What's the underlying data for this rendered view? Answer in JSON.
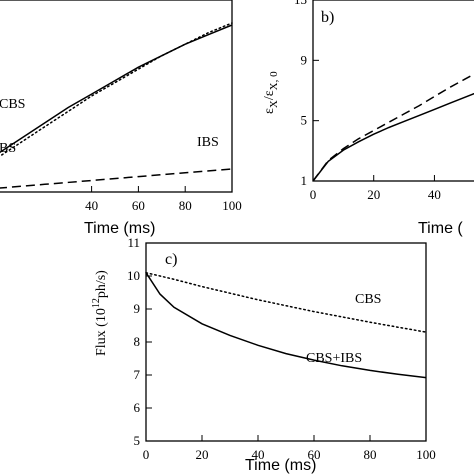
{
  "chart_data": [
    {
      "panel_label": "",
      "type": "line",
      "xlabel": "Time (ms)",
      "ylabel": "",
      "xlim": [
        0,
        100
      ],
      "ylim": [
        0,
        1
      ],
      "xticks": [
        40,
        60,
        80,
        100
      ],
      "yticks": [],
      "series": [
        {
          "name": "CBS",
          "style": "solid",
          "x": [
            0,
            10,
            20,
            30,
            40,
            50,
            60,
            70,
            80,
            90,
            100
          ],
          "y": [
            0.2,
            0.28,
            0.36,
            0.44,
            0.51,
            0.58,
            0.65,
            0.71,
            0.77,
            0.82,
            0.87
          ]
        },
        {
          "name": "",
          "style": "dotted",
          "x": [
            0,
            10,
            20,
            30,
            40,
            50,
            60,
            70,
            80,
            90,
            100
          ],
          "y": [
            0.18,
            0.26,
            0.34,
            0.42,
            0.5,
            0.57,
            0.64,
            0.71,
            0.77,
            0.83,
            0.88
          ]
        },
        {
          "name": "IBS",
          "style": "dashed",
          "x": [
            0,
            20,
            40,
            60,
            80,
            100
          ],
          "y": [
            0.02,
            0.04,
            0.06,
            0.08,
            0.1,
            0.12
          ]
        }
      ],
      "annotations": [
        "CBS",
        "BS",
        "IBS"
      ]
    },
    {
      "panel_label": "b)",
      "type": "line",
      "xlabel": "Time (",
      "ylabel": "εX/εX,0",
      "ylabel_parts": {
        "base": "ε",
        "sub1": "X",
        "slash": "/",
        "sub2": "X, 0"
      },
      "xlim": [
        0,
        56
      ],
      "ylim": [
        1,
        13
      ],
      "xticks": [
        0,
        20,
        40
      ],
      "yticks": [
        1,
        5,
        9,
        13
      ],
      "series": [
        {
          "name": "",
          "style": "solid",
          "x": [
            0,
            5,
            10,
            15,
            20,
            25,
            30,
            35,
            40,
            45,
            50,
            55
          ],
          "y": [
            1,
            2.3,
            3.05,
            3.6,
            4.1,
            4.55,
            4.95,
            5.35,
            5.75,
            6.15,
            6.55,
            6.95
          ]
        },
        {
          "name": "",
          "style": "dashed",
          "x": [
            0,
            5,
            10,
            15,
            20,
            25,
            30,
            35,
            40,
            45,
            50,
            55
          ],
          "y": [
            1,
            2.35,
            3.15,
            3.8,
            4.35,
            4.9,
            5.45,
            6,
            6.6,
            7.2,
            7.75,
            8.3
          ]
        }
      ]
    },
    {
      "panel_label": "c)",
      "type": "line",
      "xlabel": "Time (ms)",
      "ylabel_prefix": "Flux (10",
      "ylabel_sup": "12",
      "ylabel_suffix": "ph/s)",
      "xlim": [
        0,
        100
      ],
      "ylim": [
        5,
        11
      ],
      "xticks": [
        0,
        20,
        40,
        60,
        80,
        100
      ],
      "yticks": [
        5,
        6,
        7,
        8,
        9,
        10,
        11
      ],
      "series": [
        {
          "name": "CBS",
          "style": "dotted",
          "x": [
            0,
            10,
            20,
            30,
            40,
            50,
            60,
            70,
            80,
            90,
            100
          ],
          "y": [
            10.1,
            9.9,
            9.68,
            9.48,
            9.28,
            9.1,
            8.92,
            8.76,
            8.6,
            8.45,
            8.3
          ]
        },
        {
          "name": "CBS+IBS",
          "style": "solid",
          "x": [
            0,
            5,
            10,
            20,
            30,
            40,
            50,
            60,
            70,
            80,
            90,
            100
          ],
          "y": [
            10.1,
            9.45,
            9.05,
            8.55,
            8.2,
            7.9,
            7.65,
            7.45,
            7.28,
            7.14,
            7.02,
            6.92
          ]
        }
      ],
      "annotations": [
        "CBS",
        "CBS+IBS"
      ]
    }
  ]
}
